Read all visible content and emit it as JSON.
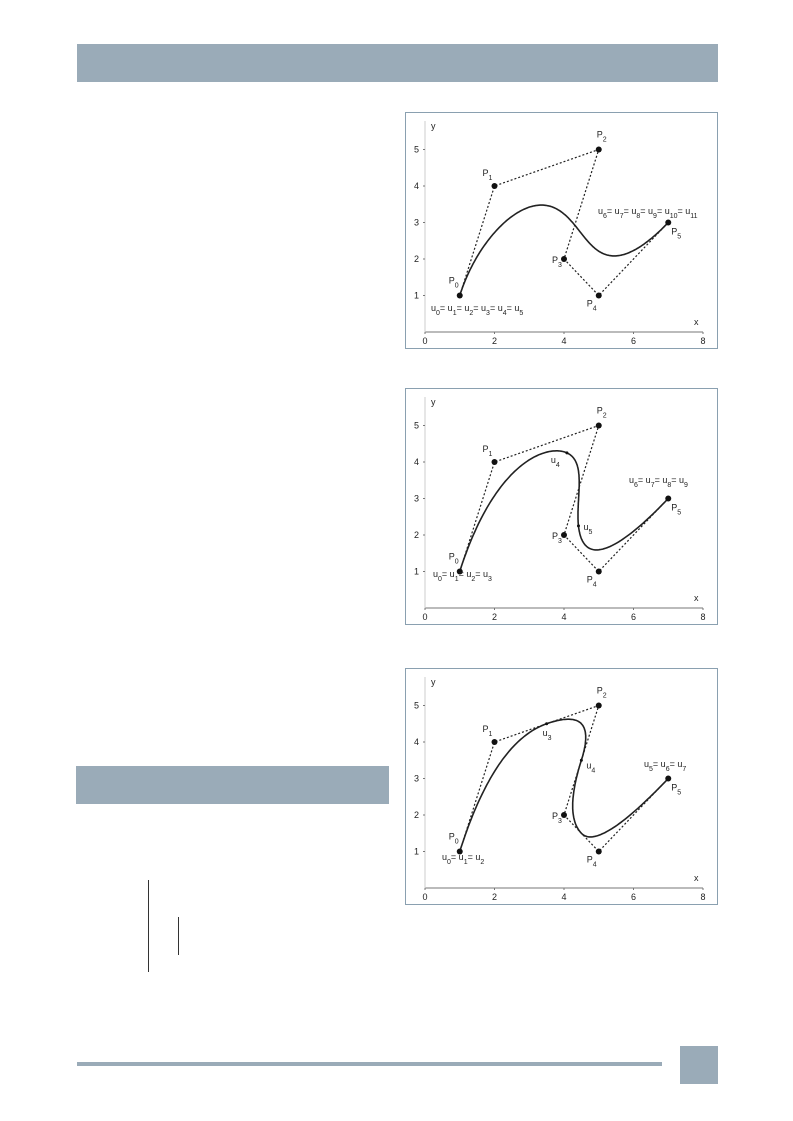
{
  "figures": [
    {
      "x_label": "x",
      "y_label": "y",
      "xticks": [
        0,
        2,
        4,
        6,
        8
      ],
      "yticks": [
        1,
        2,
        3,
        4,
        5
      ],
      "points": [
        {
          "name": "P",
          "index": "0",
          "x": 1,
          "y": 1
        },
        {
          "name": "P",
          "index": "1",
          "x": 2,
          "y": 4
        },
        {
          "name": "P",
          "index": "2",
          "x": 5,
          "y": 5
        },
        {
          "name": "P",
          "index": "3",
          "x": 4,
          "y": 2
        },
        {
          "name": "P",
          "index": "4",
          "x": 5,
          "y": 1
        },
        {
          "name": "P",
          "index": "5",
          "x": 7,
          "y": 3
        }
      ],
      "start_knots": [
        {
          "text": "u",
          "sub": "0"
        },
        {
          "text": "= u",
          "sub": "1"
        },
        {
          "text": "= u",
          "sub": "2"
        },
        {
          "text": "= u",
          "sub": "3"
        },
        {
          "text": "= u",
          "sub": "4"
        },
        {
          "text": "= u",
          "sub": "5"
        }
      ],
      "inner_knots": [],
      "end_knots": [
        {
          "text": "u",
          "sub": "6"
        },
        {
          "text": "= u",
          "sub": "7"
        },
        {
          "text": "= u",
          "sub": "8"
        },
        {
          "text": "= u",
          "sub": "9"
        },
        {
          "text": "= u",
          "sub": "10"
        },
        {
          "text": "= u",
          "sub": "11"
        }
      ]
    },
    {
      "x_label": "x",
      "y_label": "y",
      "xticks": [
        0,
        2,
        4,
        6,
        8
      ],
      "yticks": [
        1,
        2,
        3,
        4,
        5
      ],
      "points": [
        {
          "name": "P",
          "index": "0",
          "x": 1,
          "y": 1
        },
        {
          "name": "P",
          "index": "1",
          "x": 2,
          "y": 4
        },
        {
          "name": "P",
          "index": "2",
          "x": 5,
          "y": 5
        },
        {
          "name": "P",
          "index": "3",
          "x": 4,
          "y": 2
        },
        {
          "name": "P",
          "index": "4",
          "x": 5,
          "y": 1
        },
        {
          "name": "P",
          "index": "5",
          "x": 7,
          "y": 3
        }
      ],
      "start_knots": [
        {
          "text": "u",
          "sub": "0"
        },
        {
          "text": "= u",
          "sub": "1"
        },
        {
          "text": "= u",
          "sub": "2"
        },
        {
          "text": "= u",
          "sub": "3"
        }
      ],
      "inner_knots": [
        {
          "text": "u",
          "sub": "4"
        },
        {
          "text": "u",
          "sub": "5"
        }
      ],
      "end_knots": [
        {
          "text": "u",
          "sub": "6"
        },
        {
          "text": "= u",
          "sub": "7"
        },
        {
          "text": "= u",
          "sub": "8"
        },
        {
          "text": "= u",
          "sub": "9"
        }
      ]
    },
    {
      "x_label": "x",
      "y_label": "y",
      "xticks": [
        0,
        2,
        4,
        6,
        8
      ],
      "yticks": [
        1,
        2,
        3,
        4,
        5
      ],
      "points": [
        {
          "name": "P",
          "index": "0",
          "x": 1,
          "y": 1
        },
        {
          "name": "P",
          "index": "1",
          "x": 2,
          "y": 4
        },
        {
          "name": "P",
          "index": "2",
          "x": 5,
          "y": 5
        },
        {
          "name": "P",
          "index": "3",
          "x": 4,
          "y": 2
        },
        {
          "name": "P",
          "index": "4",
          "x": 5,
          "y": 1
        },
        {
          "name": "P",
          "index": "5",
          "x": 7,
          "y": 3
        }
      ],
      "start_knots": [
        {
          "text": "u",
          "sub": "0"
        },
        {
          "text": "= u",
          "sub": "1"
        },
        {
          "text": "= u",
          "sub": "2"
        }
      ],
      "inner_knots": [
        {
          "text": "u",
          "sub": "3"
        },
        {
          "text": "u",
          "sub": "4"
        }
      ],
      "end_knots": [
        {
          "text": "u",
          "sub": "5"
        },
        {
          "text": "= u",
          "sub": "6"
        },
        {
          "text": "= u",
          "sub": "7"
        }
      ]
    }
  ]
}
